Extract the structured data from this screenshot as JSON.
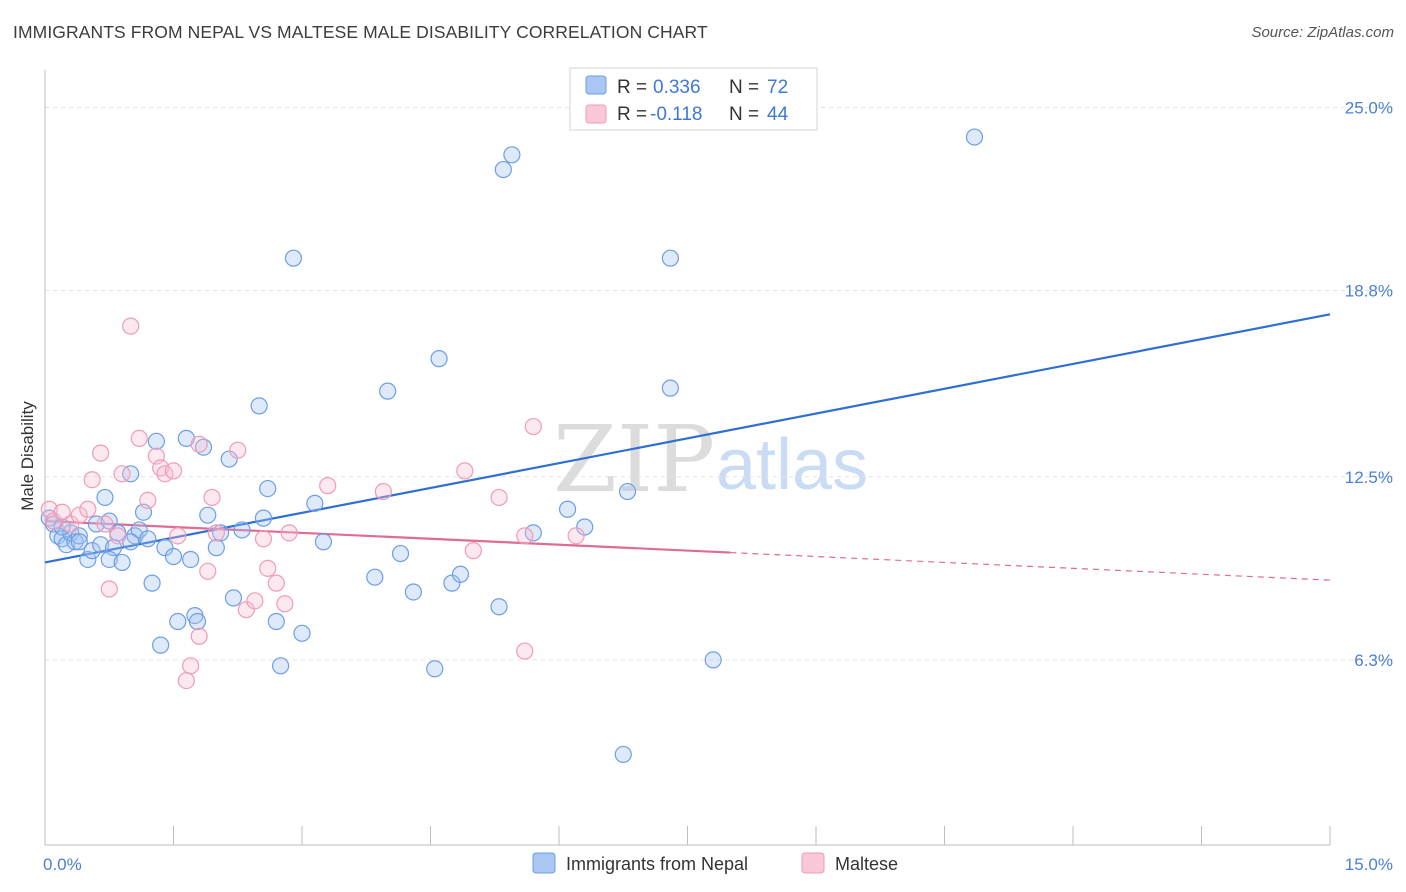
{
  "title": "IMMIGRANTS FROM NEPAL VS MALTESE MALE DISABILITY CORRELATION CHART",
  "source": "Source: ZipAtlas.com",
  "watermark": {
    "zip": "ZIP",
    "atlas": "atlas"
  },
  "colors": {
    "nepal": "#6d9ee6",
    "nepal_line": "#2f6fd3",
    "maltese": "#ef9bb8",
    "maltese_line": "#e06b93",
    "axis_text": "#4a7fd4",
    "grid": "#e3e3e3"
  },
  "legend": {
    "rows": [
      {
        "r_label": "R =",
        "r_value": "0.336",
        "n_label": "N =",
        "n_value": "72"
      },
      {
        "r_label": "R =",
        "r_value": "-0.118",
        "n_label": "N =",
        "n_value": "44"
      }
    ]
  },
  "bottom_legend": {
    "nepal": "Immigrants from Nepal",
    "maltese": "Maltese"
  },
  "chart_data": {
    "type": "scatter",
    "title": "IMMIGRANTS FROM NEPAL VS MALTESE MALE DISABILITY CORRELATION CHART",
    "xlabel": "",
    "ylabel": "Male Disability",
    "xlim": [
      0,
      15
    ],
    "ylim": [
      0,
      26
    ],
    "x_tick_labels": [
      "0.0%",
      "15.0%"
    ],
    "y_ticks": [
      6.3,
      12.5,
      18.8,
      25.0
    ],
    "y_tick_labels": [
      "6.3%",
      "12.5%",
      "18.8%",
      "25.0%"
    ],
    "grid": true,
    "legend_position": "top-center",
    "series": [
      {
        "name": "Immigrants from Nepal",
        "color": "#6d9ee6",
        "r": 0.336,
        "n": 72,
        "trend": {
          "x": [
            0,
            15
          ],
          "y": [
            9.6,
            18.0
          ],
          "dashed_from": null
        },
        "points": [
          [
            0.05,
            11.1
          ],
          [
            0.1,
            10.9
          ],
          [
            0.15,
            10.5
          ],
          [
            0.2,
            10.4
          ],
          [
            0.25,
            10.2
          ],
          [
            0.3,
            10.6
          ],
          [
            0.35,
            10.3
          ],
          [
            0.4,
            10.5
          ],
          [
            0.5,
            9.7
          ],
          [
            0.55,
            10.0
          ],
          [
            0.6,
            10.9
          ],
          [
            0.65,
            10.2
          ],
          [
            0.7,
            11.8
          ],
          [
            0.75,
            11.0
          ],
          [
            0.8,
            10.1
          ],
          [
            0.85,
            10.6
          ],
          [
            0.75,
            9.7
          ],
          [
            0.9,
            9.6
          ],
          [
            1.0,
            12.6
          ],
          [
            1.05,
            10.5
          ],
          [
            1.1,
            10.7
          ],
          [
            1.15,
            11.3
          ],
          [
            1.2,
            10.4
          ],
          [
            1.25,
            8.9
          ],
          [
            1.3,
            13.7
          ],
          [
            1.35,
            6.8
          ],
          [
            1.4,
            10.1
          ],
          [
            1.5,
            9.8
          ],
          [
            1.55,
            7.6
          ],
          [
            1.65,
            13.8
          ],
          [
            1.7,
            9.7
          ],
          [
            1.75,
            7.8
          ],
          [
            1.78,
            7.6
          ],
          [
            1.85,
            13.5
          ],
          [
            1.9,
            11.2
          ],
          [
            2.0,
            10.1
          ],
          [
            2.05,
            10.6
          ],
          [
            2.3,
            10.7
          ],
          [
            2.15,
            13.1
          ],
          [
            2.2,
            8.4
          ],
          [
            2.5,
            14.9
          ],
          [
            2.55,
            11.1
          ],
          [
            2.6,
            12.1
          ],
          [
            2.7,
            7.6
          ],
          [
            2.75,
            6.1
          ],
          [
            3.0,
            7.2
          ],
          [
            2.9,
            19.9
          ],
          [
            3.15,
            11.6
          ],
          [
            3.25,
            10.3
          ],
          [
            3.85,
            9.1
          ],
          [
            4.0,
            15.4
          ],
          [
            4.15,
            9.9
          ],
          [
            4.3,
            8.6
          ],
          [
            4.6,
            16.5
          ],
          [
            4.55,
            6.0
          ],
          [
            4.75,
            8.9
          ],
          [
            4.85,
            9.2
          ],
          [
            5.3,
            8.1
          ],
          [
            5.35,
            22.9
          ],
          [
            5.45,
            23.4
          ],
          [
            5.7,
            10.6
          ],
          [
            6.1,
            11.4
          ],
          [
            6.3,
            10.8
          ],
          [
            6.75,
            3.1
          ],
          [
            6.8,
            12.0
          ],
          [
            7.3,
            15.5
          ],
          [
            7.3,
            19.9
          ],
          [
            7.8,
            6.3
          ],
          [
            10.85,
            24.0
          ],
          [
            0.2,
            10.8
          ],
          [
            0.4,
            10.3
          ],
          [
            1.0,
            10.3
          ]
        ]
      },
      {
        "name": "Maltese",
        "color": "#ef9bb8",
        "r": -0.118,
        "n": 44,
        "trend": {
          "x": [
            0,
            15
          ],
          "y": [
            11.0,
            9.0
          ],
          "dashed_from": 8.0
        },
        "points": [
          [
            0.05,
            11.4
          ],
          [
            0.1,
            11.0
          ],
          [
            0.2,
            11.3
          ],
          [
            0.3,
            10.9
          ],
          [
            0.4,
            11.2
          ],
          [
            0.5,
            11.4
          ],
          [
            0.55,
            12.4
          ],
          [
            0.65,
            13.3
          ],
          [
            0.7,
            10.9
          ],
          [
            0.75,
            8.7
          ],
          [
            0.85,
            10.5
          ],
          [
            0.9,
            12.6
          ],
          [
            1.0,
            17.6
          ],
          [
            1.1,
            13.8
          ],
          [
            1.2,
            11.7
          ],
          [
            1.3,
            13.2
          ],
          [
            1.35,
            12.8
          ],
          [
            1.4,
            12.6
          ],
          [
            1.5,
            12.7
          ],
          [
            1.55,
            10.5
          ],
          [
            1.65,
            5.6
          ],
          [
            1.7,
            6.1
          ],
          [
            1.8,
            7.1
          ],
          [
            1.9,
            9.3
          ],
          [
            1.95,
            11.8
          ],
          [
            2.0,
            10.6
          ],
          [
            2.25,
            13.4
          ],
          [
            2.35,
            8.0
          ],
          [
            2.45,
            8.3
          ],
          [
            2.55,
            10.4
          ],
          [
            2.6,
            9.4
          ],
          [
            2.7,
            8.9
          ],
          [
            2.8,
            8.2
          ],
          [
            2.85,
            10.6
          ],
          [
            3.3,
            12.2
          ],
          [
            3.95,
            12.0
          ],
          [
            4.9,
            12.7
          ],
          [
            5.0,
            10.0
          ],
          [
            5.3,
            11.8
          ],
          [
            5.6,
            10.5
          ],
          [
            5.7,
            14.2
          ],
          [
            6.2,
            10.5
          ],
          [
            5.6,
            6.6
          ],
          [
            1.8,
            13.6
          ]
        ]
      }
    ]
  }
}
